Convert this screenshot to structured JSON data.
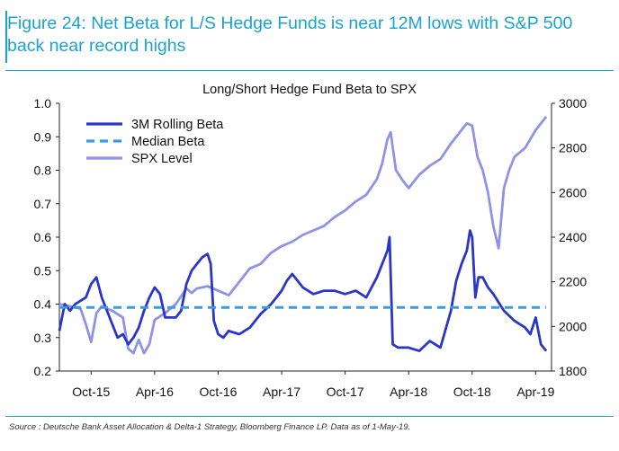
{
  "figure_title": "Figure 24: Net Beta for L/S Hedge Funds is near 12M lows with S&P 500 back near record highs",
  "source": "Source : Deutsche Bank Asset Allocation & Delta-1 Strategy, Bloomberg Finance LP. Data as of 1-May-19.",
  "colors": {
    "beta": "#2a36c8",
    "median": "#3b9be0",
    "spx": "#8f93e6",
    "accent": "#1aa3cc"
  },
  "chart_data": {
    "type": "line",
    "title": "Long/Short Hedge Fund Beta to SPX",
    "xlabel": "",
    "ylabel": "",
    "y2label": "",
    "x_start": "Jul-15",
    "x_end": "May-19",
    "x_ticks": [
      "Oct-15",
      "Apr-16",
      "Oct-16",
      "Apr-17",
      "Oct-17",
      "Apr-18",
      "Oct-18",
      "Apr-19"
    ],
    "x_tick_positions_months": [
      3,
      9,
      15,
      21,
      27,
      33,
      39,
      45
    ],
    "x_range_months": [
      0,
      46.5
    ],
    "ylim": [
      0.2,
      1.0
    ],
    "yticks": [
      0.2,
      0.3,
      0.4,
      0.5,
      0.6,
      0.7,
      0.8,
      0.9,
      1.0
    ],
    "y2lim": [
      1800,
      3000
    ],
    "y2ticks": [
      1800,
      2000,
      2200,
      2400,
      2600,
      2800,
      3000
    ],
    "legend": [
      "3M Rolling Beta",
      "Median Beta",
      "SPX Level"
    ],
    "legend_position": "top-left",
    "series": [
      {
        "name": "3M Rolling Beta",
        "axis": "left",
        "style": "solid",
        "x": [
          0,
          0.5,
          1,
          1.5,
          2,
          2.5,
          3,
          3.5,
          4,
          4.5,
          5,
          5.5,
          6,
          6.5,
          7,
          7.5,
          8,
          8.5,
          9,
          9.5,
          10,
          10.5,
          11,
          11.5,
          12,
          12.5,
          13,
          13.5,
          14,
          14.3,
          14.6,
          15,
          15.5,
          16,
          17,
          18,
          19,
          20,
          20.5,
          21,
          21.5,
          22,
          23,
          24,
          25,
          26,
          27,
          28,
          29,
          30,
          31,
          31.2,
          31.5,
          32,
          33,
          34,
          35,
          36,
          37,
          37.5,
          38,
          38.5,
          38.8,
          39,
          39.3,
          39.6,
          40,
          40.5,
          41,
          42,
          43,
          44,
          44.5,
          45,
          45.5,
          46
        ],
        "y": [
          0.32,
          0.4,
          0.38,
          0.4,
          0.41,
          0.42,
          0.46,
          0.48,
          0.42,
          0.38,
          0.34,
          0.3,
          0.31,
          0.28,
          0.3,
          0.33,
          0.38,
          0.42,
          0.45,
          0.43,
          0.36,
          0.36,
          0.36,
          0.38,
          0.46,
          0.5,
          0.52,
          0.54,
          0.55,
          0.52,
          0.35,
          0.31,
          0.3,
          0.32,
          0.31,
          0.33,
          0.37,
          0.4,
          0.42,
          0.44,
          0.47,
          0.49,
          0.45,
          0.43,
          0.44,
          0.44,
          0.43,
          0.44,
          0.42,
          0.48,
          0.56,
          0.6,
          0.28,
          0.27,
          0.27,
          0.26,
          0.29,
          0.27,
          0.38,
          0.47,
          0.52,
          0.56,
          0.62,
          0.6,
          0.42,
          0.48,
          0.48,
          0.45,
          0.43,
          0.38,
          0.35,
          0.33,
          0.31,
          0.36,
          0.28,
          0.26
        ]
      },
      {
        "name": "Median Beta",
        "axis": "left",
        "style": "dashed",
        "x": [
          0,
          46
        ],
        "y": [
          0.39,
          0.39
        ]
      },
      {
        "name": "SPX Level",
        "axis": "right",
        "style": "solid",
        "x": [
          0,
          1,
          2,
          2.5,
          3,
          3.5,
          4,
          5,
          6,
          6.5,
          7,
          7.5,
          8,
          8.5,
          9,
          10,
          11,
          12,
          12.5,
          13,
          14,
          15,
          16,
          17,
          18,
          19,
          20,
          21,
          22,
          23,
          24,
          25,
          26,
          27,
          28,
          29,
          30,
          30.5,
          31,
          31.3,
          31.8,
          32.5,
          33,
          34,
          35,
          36,
          37,
          38,
          38.5,
          39,
          39.5,
          40,
          40.5,
          41,
          41.5,
          42,
          42.5,
          43,
          44,
          45,
          46
        ],
        "y": [
          2100,
          2090,
          2080,
          2010,
          1930,
          2060,
          2090,
          2070,
          2040,
          1900,
          1880,
          1940,
          1880,
          1920,
          2030,
          2060,
          2100,
          2170,
          2150,
          2170,
          2180,
          2160,
          2140,
          2200,
          2260,
          2280,
          2330,
          2360,
          2380,
          2410,
          2430,
          2450,
          2490,
          2520,
          2560,
          2590,
          2660,
          2730,
          2840,
          2870,
          2700,
          2650,
          2620,
          2680,
          2720,
          2750,
          2820,
          2880,
          2910,
          2900,
          2760,
          2700,
          2600,
          2450,
          2350,
          2620,
          2700,
          2760,
          2800,
          2880,
          2940
        ]
      }
    ]
  }
}
